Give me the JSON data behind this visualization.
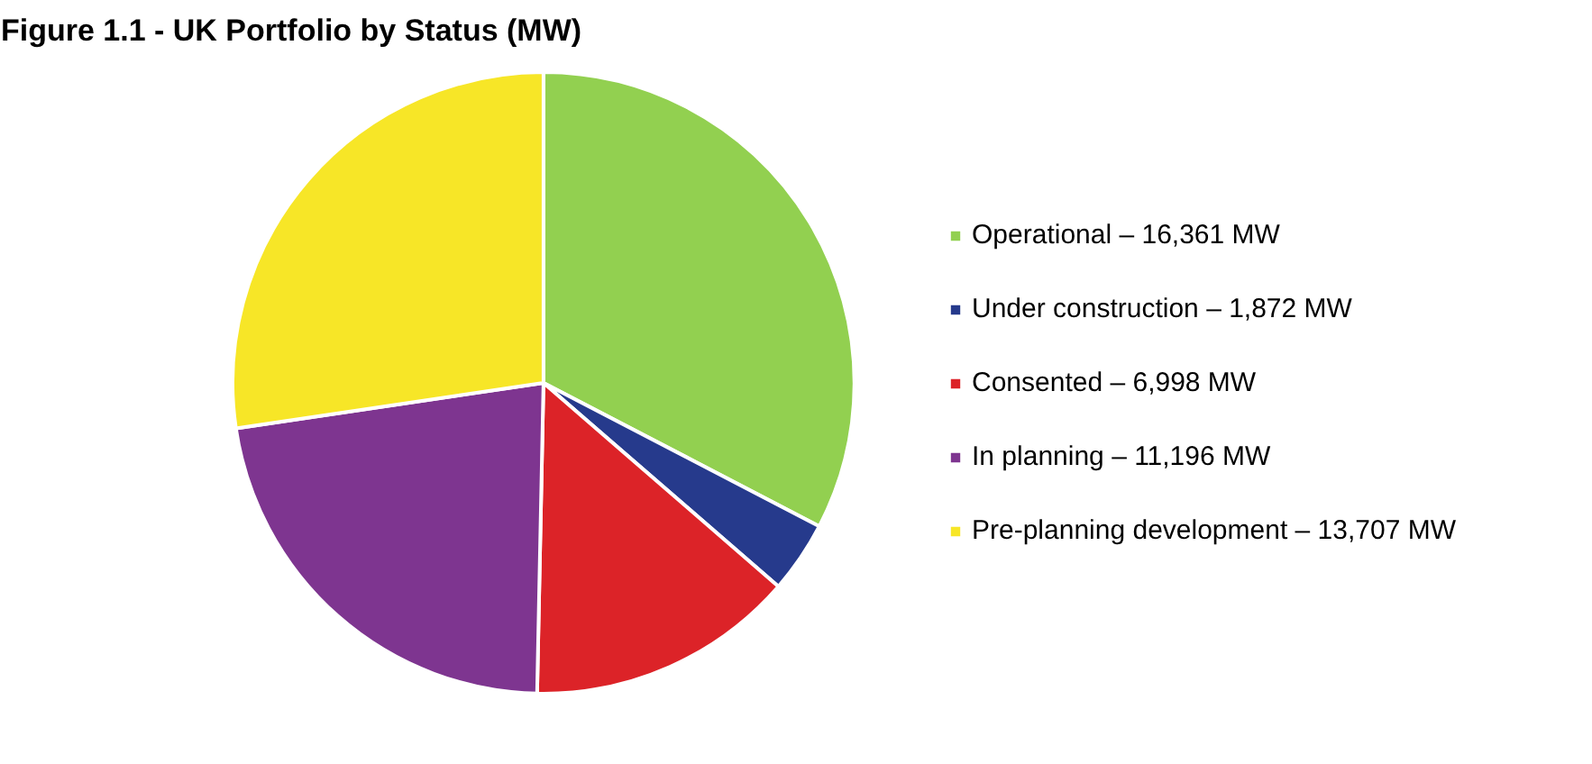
{
  "chart_data": {
    "type": "pie",
    "title": "Figure 1.1 - UK Portfolio by Status (MW)",
    "categories": [
      "Operational –",
      "Under construction –",
      "Consented –",
      "In planning –",
      "Pre-planning development –"
    ],
    "values": [
      16361,
      1872,
      6998,
      11196,
      13707
    ],
    "value_labels": [
      "16,361 MW",
      "1,872 MW",
      "6,998 MW",
      "11,196 MW",
      "13,707 MW"
    ],
    "colors": [
      "#92d050",
      "#263a8c",
      "#dc2328",
      "#7e3590",
      "#f7e627"
    ],
    "legend": "right"
  }
}
